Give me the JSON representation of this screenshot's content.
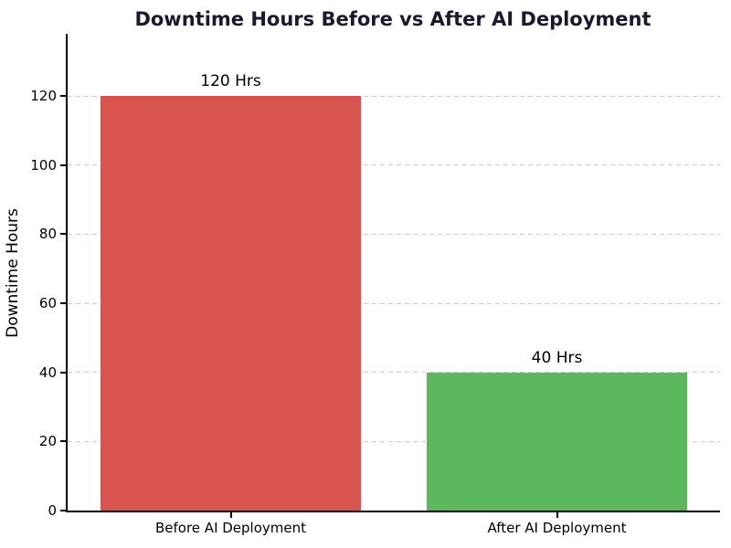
{
  "chart_data": {
    "type": "bar",
    "title": "Downtime Hours Before vs After AI Deployment",
    "xlabel": "",
    "ylabel": "Downtime Hours",
    "categories": [
      "Before AI Deployment",
      "After AI Deployment"
    ],
    "values": [
      120,
      40
    ],
    "bar_labels": [
      "120 Hrs",
      "40 Hrs"
    ],
    "bar_colors": [
      "#d9534f",
      "#5cb85c"
    ],
    "yticks": [
      0,
      20,
      40,
      60,
      80,
      100,
      120
    ],
    "ylim": [
      0,
      138
    ],
    "bar_width_fraction": 0.8,
    "grid": "horizontal-dashed",
    "grid_color": "#cccccc",
    "axis_color": "#000000",
    "title_color": "#1a1a2e",
    "background_color": "#ffffff",
    "legend": "none"
  }
}
